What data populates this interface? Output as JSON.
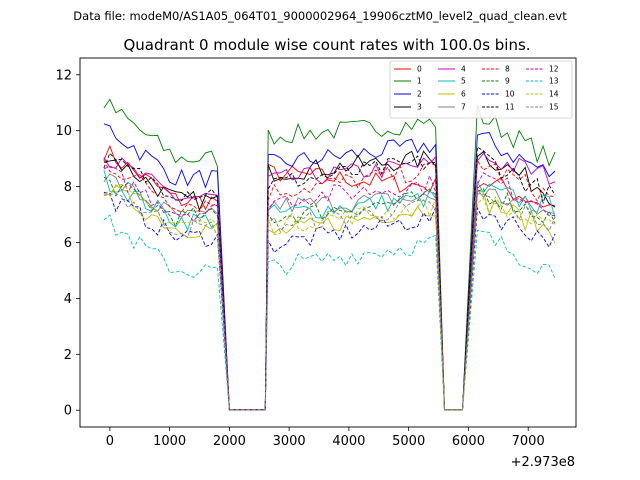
{
  "header": {
    "suptitle": "Data file: modeM0/AS1A05_064T01_9000002964_19906cztM0_level2_quad_clean.evt"
  },
  "chart_data": {
    "type": "line",
    "title": "Quadrant 0 module wise count rates with 100.0s bins.",
    "xlabel": "",
    "ylabel": "",
    "x_offset_label": "+2.973e8",
    "xlim": [
      -500,
      7800
    ],
    "ylim": [
      -0.6,
      12.6
    ],
    "xticks": [
      0,
      1000,
      2000,
      3000,
      4000,
      5000,
      6000,
      7000
    ],
    "xtick_labels": [
      "0",
      "1000",
      "2000",
      "3000",
      "4000",
      "5000",
      "6000",
      "7000"
    ],
    "yticks": [
      0,
      2,
      4,
      6,
      8,
      10,
      12
    ],
    "ytick_labels": [
      "0",
      "2",
      "4",
      "6",
      "8",
      "10",
      "12"
    ],
    "legend_position": "top-right",
    "segments": [
      {
        "x_start": -100,
        "x_end": 1850
      },
      {
        "x_start": 2650,
        "x_end": 5450
      },
      {
        "x_start": 6150,
        "x_end": 7500
      }
    ],
    "gaps": [
      {
        "edge_start": 1850,
        "edge_end": 2650,
        "flat_start": 2000,
        "flat_end": 2600
      },
      {
        "edge_start": 5450,
        "edge_end": 6150,
        "flat_start": 5600,
        "flat_end": 5900
      }
    ],
    "series": [
      {
        "name": "0",
        "color": "#ff0000",
        "dashed": false,
        "levels": [
          9.3,
          7.5,
          8.5,
          8.0,
          7.2
        ]
      },
      {
        "name": "1",
        "color": "#008000",
        "dashed": false,
        "levels": [
          11.0,
          9.0,
          9.8,
          10.3,
          8.8
        ]
      },
      {
        "name": "2",
        "color": "#0000ff",
        "dashed": false,
        "levels": [
          10.2,
          8.3,
          8.8,
          9.5,
          8.3
        ]
      },
      {
        "name": "3",
        "color": "#000000",
        "dashed": false,
        "levels": [
          9.2,
          7.5,
          8.5,
          9.0,
          7.6
        ]
      },
      {
        "name": "4",
        "color": "#c000c0",
        "dashed": false,
        "levels": [
          9.1,
          7.6,
          8.2,
          8.8,
          8.3
        ]
      },
      {
        "name": "5",
        "color": "#00bfbf",
        "dashed": false,
        "levels": [
          8.3,
          6.8,
          7.0,
          7.6,
          7.2
        ]
      },
      {
        "name": "6",
        "color": "#bfbf00",
        "dashed": false,
        "levels": [
          8.0,
          6.5,
          6.3,
          7.3,
          6.3
        ]
      },
      {
        "name": "7",
        "color": "#808080",
        "dashed": false,
        "levels": [
          8.4,
          6.9,
          7.3,
          7.6,
          6.9
        ]
      },
      {
        "name": "8",
        "color": "#ff0000",
        "dashed": true,
        "levels": [
          8.9,
          7.4,
          7.8,
          8.6,
          7.5
        ]
      },
      {
        "name": "9",
        "color": "#008000",
        "dashed": true,
        "levels": [
          8.2,
          6.9,
          6.9,
          7.6,
          6.8
        ]
      },
      {
        "name": "10",
        "color": "#0000ff",
        "dashed": true,
        "levels": [
          7.7,
          6.2,
          5.9,
          6.9,
          6.0
        ]
      },
      {
        "name": "11",
        "color": "#000000",
        "dashed": true,
        "levels": [
          9.0,
          7.8,
          8.1,
          8.9,
          7.5
        ]
      },
      {
        "name": "12",
        "color": "#c000c0",
        "dashed": true,
        "levels": [
          8.6,
          7.1,
          7.5,
          8.1,
          7.2
        ]
      },
      {
        "name": "13",
        "color": "#00bfbf",
        "dashed": true,
        "levels": [
          6.8,
          5.0,
          5.1,
          6.0,
          4.9
        ]
      },
      {
        "name": "14",
        "color": "#bfbf00",
        "dashed": true,
        "levels": [
          8.1,
          6.7,
          6.6,
          7.3,
          6.3
        ]
      },
      {
        "name": "15",
        "color": "#808080",
        "dashed": true,
        "levels": [
          8.0,
          6.5,
          6.6,
          7.3,
          6.6
        ]
      }
    ]
  }
}
